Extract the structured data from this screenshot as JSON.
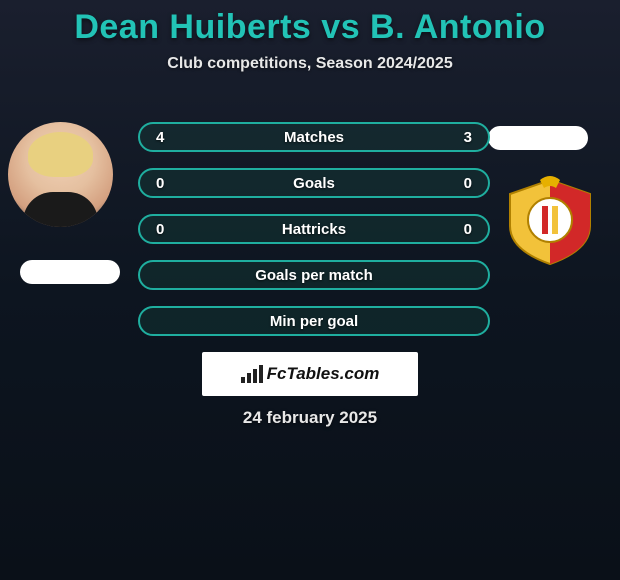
{
  "title_color": "#22c3b6",
  "header": {
    "title": "Dean Huiberts vs B. Antonio",
    "subtitle": "Club competitions, Season 2024/2025"
  },
  "stats": {
    "row_border_color": "#1fae9f",
    "row_border_width": 2,
    "row_bg_color": "rgba(20,70,60,0.35)",
    "label_color": "#ffffff",
    "rows": [
      {
        "label": "Matches",
        "left": "4",
        "right": "3"
      },
      {
        "label": "Goals",
        "left": "0",
        "right": "0"
      },
      {
        "label": "Hattricks",
        "left": "0",
        "right": "0"
      },
      {
        "label": "Goals per match",
        "left": "",
        "right": ""
      },
      {
        "label": "Min per goal",
        "left": "",
        "right": ""
      }
    ]
  },
  "brand": {
    "text": "FcTables.com"
  },
  "date": "24 february 2025",
  "badge": {
    "outer_color": "#f2c23a",
    "stripe_red": "#d22828",
    "stripe_yellow": "#f2c23a",
    "inner_white": "#ffffff"
  }
}
